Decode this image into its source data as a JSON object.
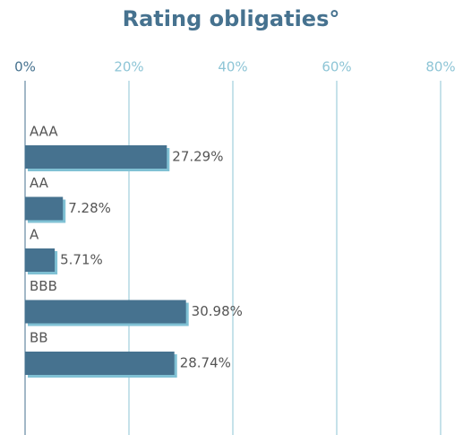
{
  "chart_data": {
    "type": "bar",
    "orientation": "horizontal",
    "title": "Rating obligaties°",
    "categories": [
      "AAA",
      "AA",
      "A",
      "BBB",
      "BB"
    ],
    "values": [
      27.29,
      7.28,
      5.71,
      30.98,
      28.74
    ],
    "value_labels": [
      "27.29%",
      "7.28%",
      "5.71%",
      "30.98%",
      "28.74%"
    ],
    "color": "#46728f",
    "shadow_color": "#80c1d4",
    "xlim": [
      0,
      80
    ],
    "xticks": [
      {
        "value": 0,
        "label": "0%"
      },
      {
        "value": 20,
        "label": "20%"
      },
      {
        "value": 40,
        "label": "40%"
      },
      {
        "value": 60,
        "label": "60%"
      },
      {
        "value": 80,
        "label": "80%"
      }
    ],
    "grid": true
  }
}
